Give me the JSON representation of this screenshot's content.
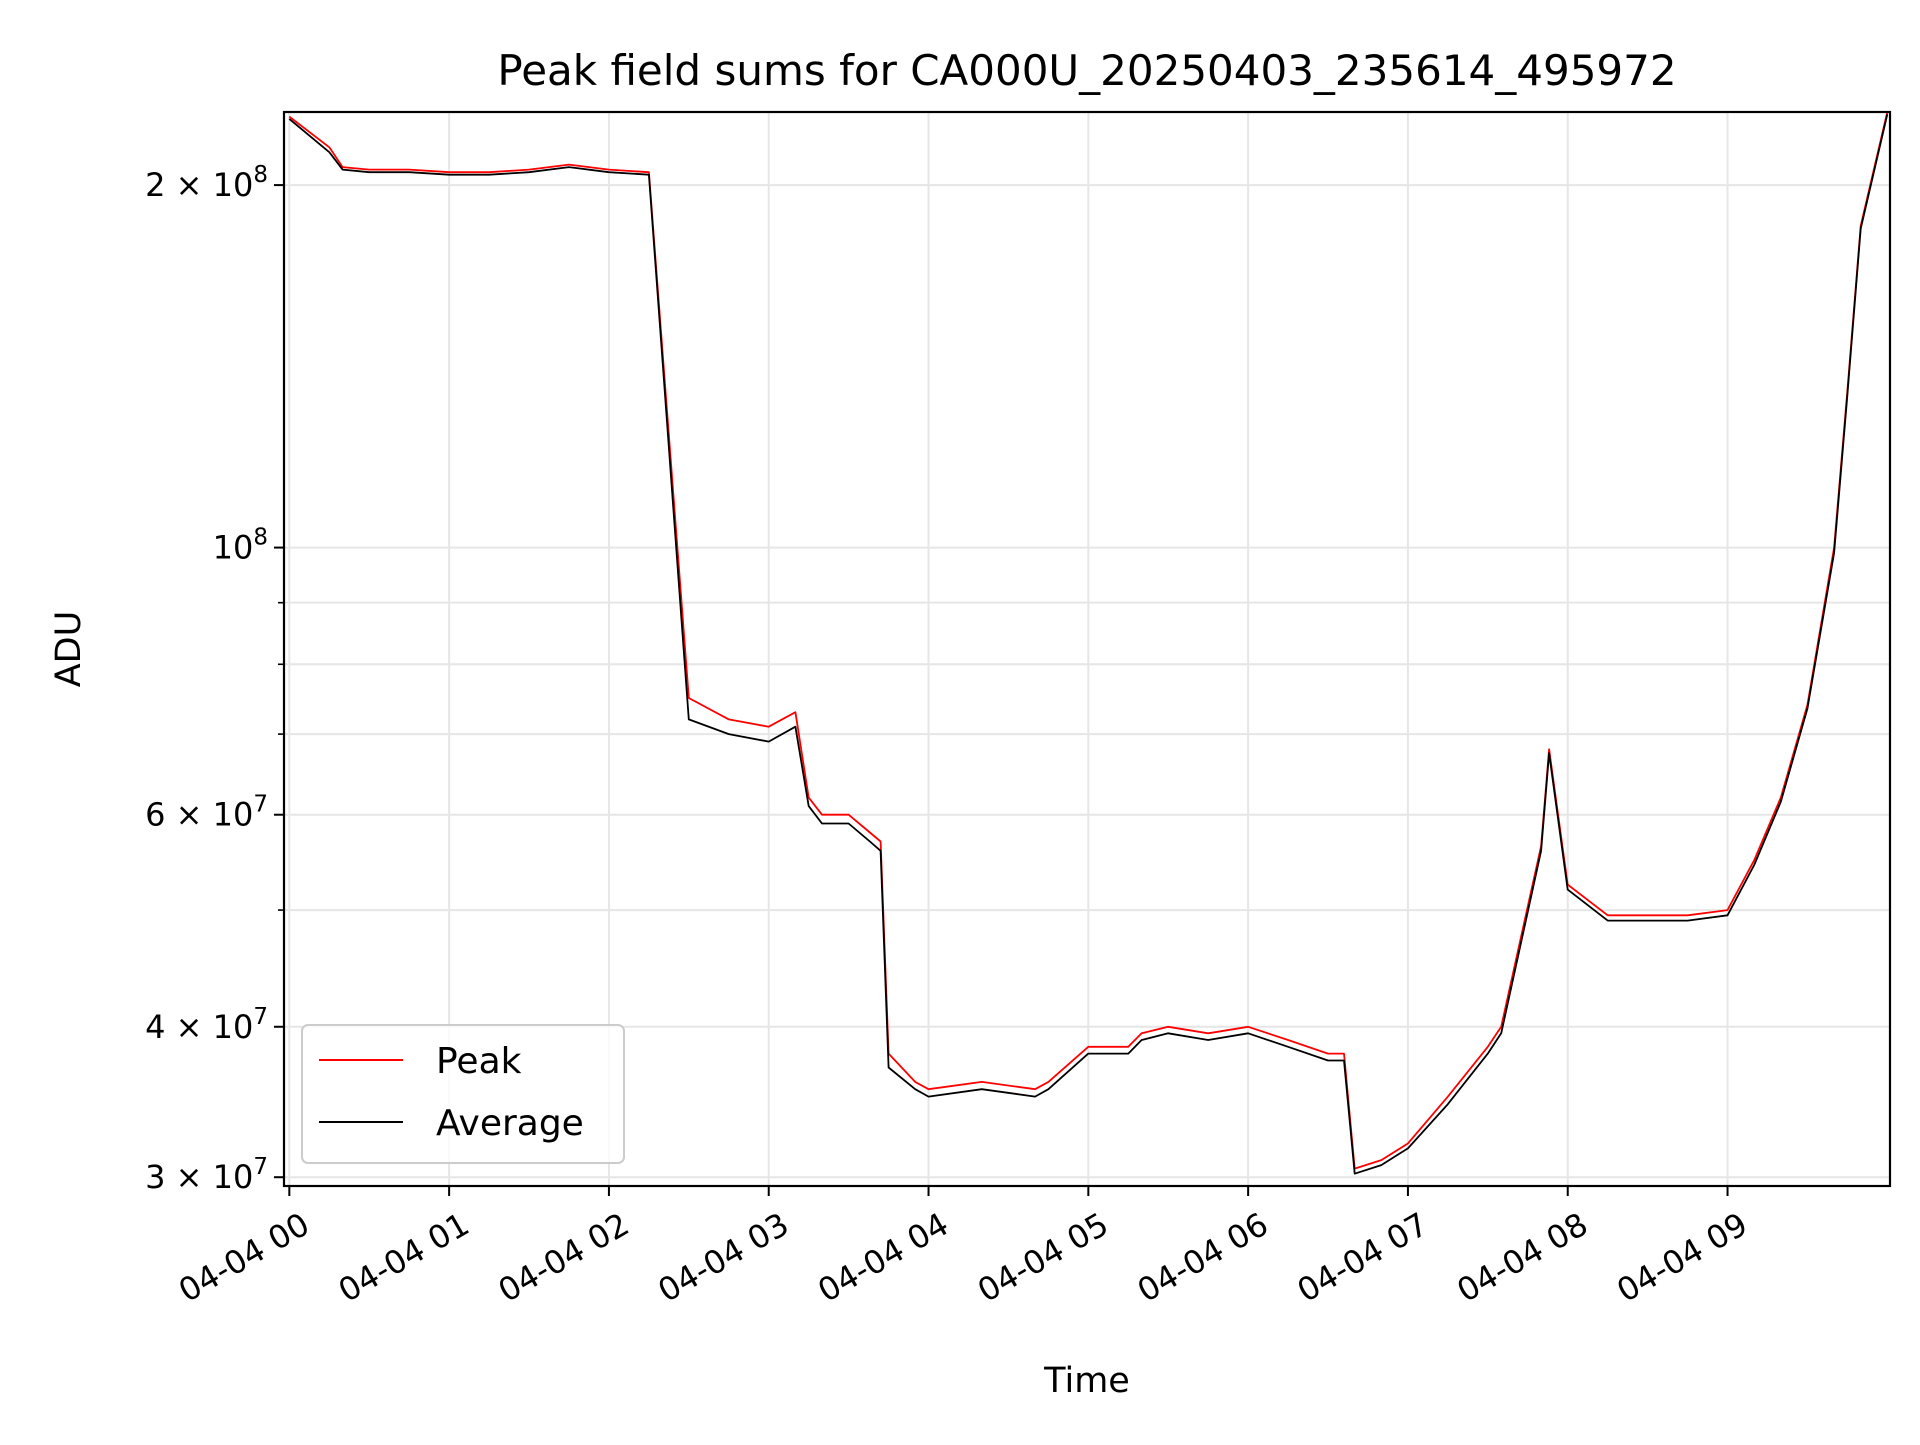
{
  "chart_data": {
    "type": "line",
    "title": "Peak field sums for CA000U_20250403_235614_495972",
    "xlabel": "Time",
    "ylabel": "ADU",
    "yscale": "log",
    "ylim": [
      29500000,
      230000000
    ],
    "xlim": [
      "2025-04-03 23:58",
      "2025-04-04 10:01"
    ],
    "grid": true,
    "legend_position": "lower-left",
    "x_ticks": [
      {
        "at": "2025-04-04 00:00",
        "label": "04-04 00"
      },
      {
        "at": "2025-04-04 01:00",
        "label": "04-04 01"
      },
      {
        "at": "2025-04-04 02:00",
        "label": "04-04 02"
      },
      {
        "at": "2025-04-04 03:00",
        "label": "04-04 03"
      },
      {
        "at": "2025-04-04 04:00",
        "label": "04-04 04"
      },
      {
        "at": "2025-04-04 05:00",
        "label": "04-04 05"
      },
      {
        "at": "2025-04-04 06:00",
        "label": "04-04 06"
      },
      {
        "at": "2025-04-04 07:00",
        "label": "04-04 07"
      },
      {
        "at": "2025-04-04 08:00",
        "label": "04-04 08"
      },
      {
        "at": "2025-04-04 09:00",
        "label": "04-04 09"
      }
    ],
    "y_ticks": [
      {
        "value": 30000000,
        "mantissa": "3",
        "cross": "×",
        "base": "10",
        "exp": "7"
      },
      {
        "value": 40000000,
        "mantissa": "4",
        "cross": "×",
        "base": "10",
        "exp": "7"
      },
      {
        "value": 60000000,
        "mantissa": "6",
        "cross": "×",
        "base": "10",
        "exp": "7"
      },
      {
        "value": 100000000,
        "mantissa": "",
        "cross": "",
        "base": "10",
        "exp": "8"
      },
      {
        "value": 200000000,
        "mantissa": "2",
        "cross": "×",
        "base": "10",
        "exp": "8"
      }
    ],
    "y_minor_ticks": [
      50000000,
      70000000,
      80000000,
      90000000
    ],
    "series": [
      {
        "name": "Peak",
        "color": "#ff0000",
        "x": [
          "2025-04-04 00:00",
          "2025-04-04 00:15",
          "2025-04-04 00:20",
          "2025-04-04 00:30",
          "2025-04-04 00:45",
          "2025-04-04 01:00",
          "2025-04-04 01:15",
          "2025-04-04 01:30",
          "2025-04-04 01:45",
          "2025-04-04 02:00",
          "2025-04-04 02:15",
          "2025-04-04 02:30",
          "2025-04-04 02:45",
          "2025-04-04 03:00",
          "2025-04-04 03:10",
          "2025-04-04 03:15",
          "2025-04-04 03:20",
          "2025-04-04 03:30",
          "2025-04-04 03:38",
          "2025-04-04 03:42",
          "2025-04-04 03:45",
          "2025-04-04 03:55",
          "2025-04-04 04:00",
          "2025-04-04 04:20",
          "2025-04-04 04:40",
          "2025-04-04 04:45",
          "2025-04-04 05:00",
          "2025-04-04 05:15",
          "2025-04-04 05:20",
          "2025-04-04 05:30",
          "2025-04-04 05:45",
          "2025-04-04 06:00",
          "2025-04-04 06:15",
          "2025-04-04 06:30",
          "2025-04-04 06:36",
          "2025-04-04 06:40",
          "2025-04-04 06:50",
          "2025-04-04 07:00",
          "2025-04-04 07:15",
          "2025-04-04 07:30",
          "2025-04-04 07:35",
          "2025-04-04 07:50",
          "2025-04-04 07:53",
          "2025-04-04 08:00",
          "2025-04-04 08:15",
          "2025-04-04 08:30",
          "2025-04-04 08:45",
          "2025-04-04 09:00",
          "2025-04-04 09:10",
          "2025-04-04 09:20",
          "2025-04-04 09:30",
          "2025-04-04 09:40",
          "2025-04-04 09:45",
          "2025-04-04 09:50",
          "2025-04-04 10:00"
        ],
        "values": [
          228000000,
          215000000,
          207000000,
          206000000,
          206000000,
          205000000,
          205000000,
          206000000,
          208000000,
          206000000,
          205000000,
          75000000,
          72000000,
          71000000,
          73000000,
          62000000,
          60000000,
          60000000,
          58000000,
          57000000,
          38000000,
          36000000,
          35500000,
          36000000,
          35500000,
          36000000,
          38500000,
          38500000,
          39500000,
          40000000,
          39500000,
          40000000,
          39000000,
          38000000,
          38000000,
          30500000,
          31000000,
          32000000,
          35000000,
          38500000,
          40000000,
          56500000,
          68000000,
          52500000,
          49500000,
          49500000,
          49500000,
          50000000,
          55000000,
          62000000,
          74000000,
          100000000,
          135000000,
          185000000,
          230000000
        ]
      },
      {
        "name": "Average",
        "color": "#000000",
        "x": [
          "2025-04-04 00:00",
          "2025-04-04 00:15",
          "2025-04-04 00:20",
          "2025-04-04 00:30",
          "2025-04-04 00:45",
          "2025-04-04 01:00",
          "2025-04-04 01:15",
          "2025-04-04 01:30",
          "2025-04-04 01:45",
          "2025-04-04 02:00",
          "2025-04-04 02:15",
          "2025-04-04 02:30",
          "2025-04-04 02:45",
          "2025-04-04 03:00",
          "2025-04-04 03:10",
          "2025-04-04 03:15",
          "2025-04-04 03:20",
          "2025-04-04 03:30",
          "2025-04-04 03:38",
          "2025-04-04 03:42",
          "2025-04-04 03:45",
          "2025-04-04 03:55",
          "2025-04-04 04:00",
          "2025-04-04 04:20",
          "2025-04-04 04:40",
          "2025-04-04 04:45",
          "2025-04-04 05:00",
          "2025-04-04 05:15",
          "2025-04-04 05:20",
          "2025-04-04 05:30",
          "2025-04-04 05:45",
          "2025-04-04 06:00",
          "2025-04-04 06:15",
          "2025-04-04 06:30",
          "2025-04-04 06:36",
          "2025-04-04 06:40",
          "2025-04-04 06:50",
          "2025-04-04 07:00",
          "2025-04-04 07:15",
          "2025-04-04 07:30",
          "2025-04-04 07:35",
          "2025-04-04 07:50",
          "2025-04-04 07:53",
          "2025-04-04 08:00",
          "2025-04-04 08:15",
          "2025-04-04 08:30",
          "2025-04-04 08:45",
          "2025-04-04 09:00",
          "2025-04-04 09:10",
          "2025-04-04 09:20",
          "2025-04-04 09:30",
          "2025-04-04 09:40",
          "2025-04-04 09:45",
          "2025-04-04 09:50",
          "2025-04-04 10:00"
        ],
        "values": [
          227000000,
          213000000,
          206000000,
          205000000,
          205000000,
          204000000,
          204000000,
          205000000,
          207000000,
          205000000,
          204000000,
          72000000,
          70000000,
          69000000,
          71000000,
          61000000,
          59000000,
          59000000,
          57000000,
          56000000,
          37000000,
          35500000,
          35000000,
          35500000,
          35000000,
          35500000,
          38000000,
          38000000,
          39000000,
          39500000,
          39000000,
          39500000,
          38500000,
          37500000,
          37500000,
          30200000,
          30700000,
          31700000,
          34500000,
          38000000,
          39500000,
          56000000,
          67500000,
          52000000,
          49000000,
          49000000,
          49000000,
          49500000,
          54500000,
          61500000,
          73500000,
          99000000,
          134000000,
          184000000,
          229000000
        ]
      }
    ]
  }
}
